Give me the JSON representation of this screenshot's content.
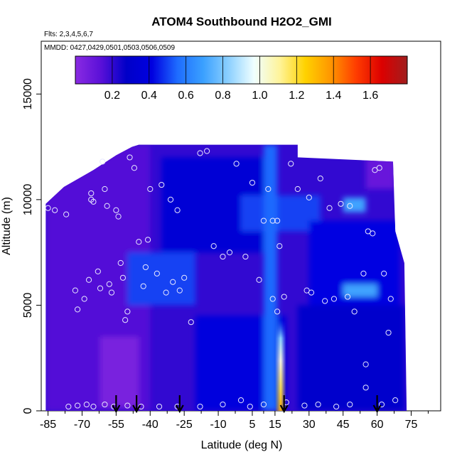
{
  "chart_data": {
    "type": "heatmap",
    "title": "ATOM4 Southbound H2O2_GMI",
    "subtitle_flights": "Flts: 2,3,4,5,6,7",
    "subtitle_dates": "MMDD: 0427,0429,0501,0503,0506,0509",
    "xlabel": "Latitude (deg N)",
    "ylabel": "Altitude (m)",
    "xlim": [
      -88,
      88
    ],
    "ylim": [
      0,
      17500
    ],
    "x_ticks": [
      -85,
      -70,
      -55,
      -40,
      -25,
      -10,
      5,
      15,
      30,
      45,
      60,
      75
    ],
    "x_minor_ticks": [
      -77.5,
      -62.5,
      -47.5,
      -32.5,
      -17.5,
      -2.5,
      10,
      22.5,
      37.5,
      52.5,
      67.5,
      82.5
    ],
    "y_ticks": [
      0,
      5000,
      10000,
      15000
    ],
    "colorbar": {
      "ticks": [
        0.2,
        0.4,
        0.6,
        0.8,
        1.0,
        1.2,
        1.4,
        1.6
      ],
      "tick_labels": [
        "0.2",
        "0.4",
        "0.6",
        "0.8",
        "1.0",
        "1.2",
        "1.4",
        "1.6"
      ],
      "range": [
        0.0,
        1.8
      ],
      "colors": [
        "#8a2be2",
        "#5a10d8",
        "#0000c8",
        "#0000e0",
        "#1e6cff",
        "#3aa0ff",
        "#8cd0ff",
        "#f0ffff",
        "#fff49a",
        "#ffd200",
        "#ff9600",
        "#ff3c00",
        "#dc0000",
        "#a01e1e"
      ]
    },
    "field_ceiling": [
      {
        "lat": -86,
        "alt": 9800
      },
      {
        "lat": -78,
        "alt": 10600
      },
      {
        "lat": -65,
        "alt": 11400
      },
      {
        "lat": -55,
        "alt": 12100
      },
      {
        "lat": -48,
        "alt": 12500
      },
      {
        "lat": -45,
        "alt": 12600
      },
      {
        "lat": 25,
        "alt": 12600
      },
      {
        "lat": 25,
        "alt": 12000
      },
      {
        "lat": 67,
        "alt": 11800
      },
      {
        "lat": 68,
        "alt": 8500
      },
      {
        "lat": 72,
        "alt": 7000
      },
      {
        "lat": 73,
        "alt": 0
      }
    ],
    "field_regions": [
      {
        "lat": [
          -86,
          -40
        ],
        "alt": [
          0,
          12600
        ],
        "value": 0.15
      },
      {
        "lat": [
          -62,
          -45
        ],
        "alt": [
          200,
          3500
        ],
        "value": 0.05
      },
      {
        "lat": [
          -50,
          -20
        ],
        "alt": [
          5000,
          7500
        ],
        "value": 0.5
      },
      {
        "lat": [
          -35,
          10
        ],
        "alt": [
          7500,
          12000
        ],
        "value": 0.35
      },
      {
        "lat": [
          0,
          35
        ],
        "alt": [
          8500,
          10200
        ],
        "value": 0.5
      },
      {
        "lat": [
          -20,
          20
        ],
        "alt": [
          0,
          4500
        ],
        "value": 0.4
      },
      {
        "lat": [
          25,
          72
        ],
        "alt": [
          0,
          5000
        ],
        "value": 0.3
      },
      {
        "lat": [
          30,
          70
        ],
        "alt": [
          5000,
          9000
        ],
        "value": 0.42
      },
      {
        "lat": [
          45,
          60
        ],
        "alt": [
          5400,
          6000
        ],
        "value": 0.7
      },
      {
        "lat": [
          45,
          55
        ],
        "alt": [
          9400,
          10100
        ],
        "value": 0.7
      },
      {
        "lat": [
          55,
          68
        ],
        "alt": [
          10500,
          12000
        ],
        "value": 0.1
      },
      {
        "lat": [
          10,
          16
        ],
        "alt": [
          0,
          12600
        ],
        "value": 0.55
      }
    ],
    "plume": {
      "lat_center": 17.5,
      "lat_halfwidth": 2.5,
      "alt_top": 4300,
      "peak_value": 1.25,
      "core_value": 0.9
    },
    "observations": [
      {
        "lat": -85,
        "alt": 9600
      },
      {
        "lat": -82,
        "alt": 9500
      },
      {
        "lat": -77,
        "alt": 9300
      },
      {
        "lat": -73,
        "alt": 5700
      },
      {
        "lat": -72,
        "alt": 4800
      },
      {
        "lat": -69,
        "alt": 5300
      },
      {
        "lat": -67,
        "alt": 6200
      },
      {
        "lat": -66,
        "alt": 10300
      },
      {
        "lat": -65,
        "alt": 9900
      },
      {
        "lat": -66,
        "alt": 10000
      },
      {
        "lat": -63,
        "alt": 6600
      },
      {
        "lat": -62,
        "alt": 5800
      },
      {
        "lat": -61,
        "alt": 11800
      },
      {
        "lat": -60,
        "alt": 10500
      },
      {
        "lat": -59,
        "alt": 9700
      },
      {
        "lat": -58,
        "alt": 6000
      },
      {
        "lat": -57,
        "alt": 5600
      },
      {
        "lat": -55,
        "alt": 9500
      },
      {
        "lat": -54,
        "alt": 9200
      },
      {
        "lat": -53,
        "alt": 7000
      },
      {
        "lat": -52,
        "alt": 6300
      },
      {
        "lat": -51,
        "alt": 4300
      },
      {
        "lat": -50,
        "alt": 4700
      },
      {
        "lat": -49,
        "alt": 12000
      },
      {
        "lat": -47,
        "alt": 11500
      },
      {
        "lat": -45,
        "alt": 8000
      },
      {
        "lat": -43,
        "alt": 5900
      },
      {
        "lat": -42,
        "alt": 6800
      },
      {
        "lat": -41,
        "alt": 8100
      },
      {
        "lat": -40,
        "alt": 10500
      },
      {
        "lat": -37,
        "alt": 6500
      },
      {
        "lat": -35,
        "alt": 10700
      },
      {
        "lat": -33,
        "alt": 5600
      },
      {
        "lat": -31,
        "alt": 10000
      },
      {
        "lat": -30,
        "alt": 6100
      },
      {
        "lat": -28,
        "alt": 9500
      },
      {
        "lat": -27,
        "alt": 5700
      },
      {
        "lat": -25,
        "alt": 6300
      },
      {
        "lat": -22,
        "alt": 4200
      },
      {
        "lat": -18,
        "alt": 12200
      },
      {
        "lat": -15,
        "alt": 12300
      },
      {
        "lat": -12,
        "alt": 7800
      },
      {
        "lat": -8,
        "alt": 7300
      },
      {
        "lat": -5,
        "alt": 7500
      },
      {
        "lat": -2,
        "alt": 11700
      },
      {
        "lat": 2,
        "alt": 7300
      },
      {
        "lat": 5,
        "alt": 10800
      },
      {
        "lat": 8,
        "alt": 6200
      },
      {
        "lat": 10,
        "alt": 9000
      },
      {
        "lat": 12,
        "alt": 10500
      },
      {
        "lat": 14,
        "alt": 9000
      },
      {
        "lat": 14,
        "alt": 5300
      },
      {
        "lat": 16,
        "alt": 9000
      },
      {
        "lat": 17,
        "alt": 7800
      },
      {
        "lat": 16,
        "alt": 4700
      },
      {
        "lat": 19,
        "alt": 5400
      },
      {
        "lat": 22,
        "alt": 11700
      },
      {
        "lat": 25,
        "alt": 10500
      },
      {
        "lat": 29,
        "alt": 5700
      },
      {
        "lat": 30,
        "alt": 10100
      },
      {
        "lat": 31,
        "alt": 5600
      },
      {
        "lat": 35,
        "alt": 11000
      },
      {
        "lat": 37,
        "alt": 5200
      },
      {
        "lat": 39,
        "alt": 9600
      },
      {
        "lat": 41,
        "alt": 5300
      },
      {
        "lat": 44,
        "alt": 9800
      },
      {
        "lat": 47,
        "alt": 5400
      },
      {
        "lat": 48,
        "alt": 9700
      },
      {
        "lat": 50,
        "alt": 4700
      },
      {
        "lat": 54,
        "alt": 6500
      },
      {
        "lat": 55,
        "alt": 2200
      },
      {
        "lat": 56,
        "alt": 8500
      },
      {
        "lat": 58,
        "alt": 8400
      },
      {
        "lat": 59,
        "alt": 11400
      },
      {
        "lat": 61,
        "alt": 11500
      },
      {
        "lat": 63,
        "alt": 6500
      },
      {
        "lat": 65,
        "alt": 3700
      },
      {
        "lat": 66,
        "alt": 5300
      },
      {
        "lat": -76,
        "alt": 200
      },
      {
        "lat": -72,
        "alt": 250
      },
      {
        "lat": -68,
        "alt": 300
      },
      {
        "lat": -65,
        "alt": 200
      },
      {
        "lat": -60,
        "alt": 300
      },
      {
        "lat": -56,
        "alt": 200
      },
      {
        "lat": -50,
        "alt": 250
      },
      {
        "lat": -44,
        "alt": 200
      },
      {
        "lat": -36,
        "alt": 200
      },
      {
        "lat": -28,
        "alt": 200
      },
      {
        "lat": -18,
        "alt": 200
      },
      {
        "lat": -8,
        "alt": 300
      },
      {
        "lat": 0,
        "alt": 500
      },
      {
        "lat": 4,
        "alt": 200
      },
      {
        "lat": 10,
        "alt": 300
      },
      {
        "lat": 20,
        "alt": 400
      },
      {
        "lat": 28,
        "alt": 250
      },
      {
        "lat": 34,
        "alt": 300
      },
      {
        "lat": 42,
        "alt": 200
      },
      {
        "lat": 48,
        "alt": 300
      },
      {
        "lat": 55,
        "alt": 1100
      },
      {
        "lat": 62,
        "alt": 300
      },
      {
        "lat": 68,
        "alt": 500
      }
    ],
    "arrows": [
      -55,
      -46,
      -27,
      19,
      60
    ]
  }
}
